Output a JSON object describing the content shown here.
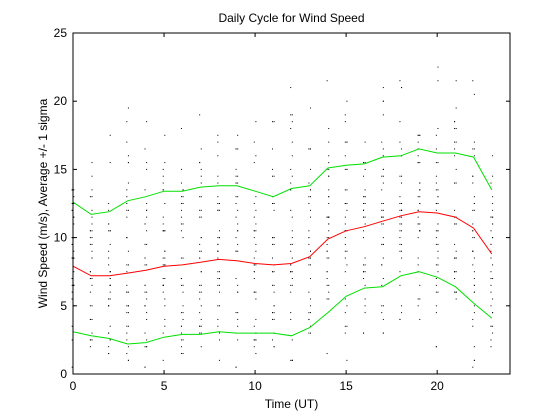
{
  "chart_data": {
    "type": "line",
    "title": "Daily Cycle for Wind Speed",
    "xlabel": "Time (UT)",
    "ylabel": "Wind Speed (m/s), Average +/- 1 sigma",
    "xlim": [
      0,
      24
    ],
    "ylim": [
      0,
      25
    ],
    "xticks": [
      0,
      5,
      10,
      15,
      20
    ],
    "yticks": [
      0,
      5,
      10,
      15,
      20,
      25
    ],
    "grid": false,
    "x": [
      0,
      1,
      2,
      3,
      4,
      5,
      6,
      7,
      8,
      9,
      10,
      11,
      12,
      13,
      14,
      15,
      16,
      17,
      18,
      19,
      20,
      21,
      22,
      23
    ],
    "series": [
      {
        "role": "average",
        "color": "#ff0000",
        "values": [
          7.9,
          7.2,
          7.2,
          7.4,
          7.6,
          7.9,
          8.0,
          8.2,
          8.4,
          8.3,
          8.1,
          8.0,
          8.1,
          8.6,
          9.9,
          10.5,
          10.8,
          11.2,
          11.6,
          11.9,
          11.8,
          11.5,
          10.7,
          8.8
        ]
      },
      {
        "role": "average_plus_sigma",
        "color": "#00e000",
        "values": [
          12.6,
          11.7,
          11.9,
          12.7,
          13.0,
          13.4,
          13.4,
          13.7,
          13.8,
          13.8,
          13.4,
          13.0,
          13.6,
          13.8,
          15.1,
          15.3,
          15.4,
          15.9,
          16.0,
          16.5,
          16.2,
          16.2,
          15.9,
          13.5
        ]
      },
      {
        "role": "average_minus_sigma",
        "color": "#00e000",
        "values": [
          3.1,
          2.8,
          2.6,
          2.2,
          2.3,
          2.7,
          2.9,
          2.9,
          3.1,
          3.0,
          3.0,
          3.0,
          2.8,
          3.4,
          4.5,
          5.7,
          6.3,
          6.4,
          7.2,
          7.5,
          7.1,
          6.4,
          5.2,
          4.1
        ]
      }
    ],
    "scatter_color": "#000000"
  }
}
